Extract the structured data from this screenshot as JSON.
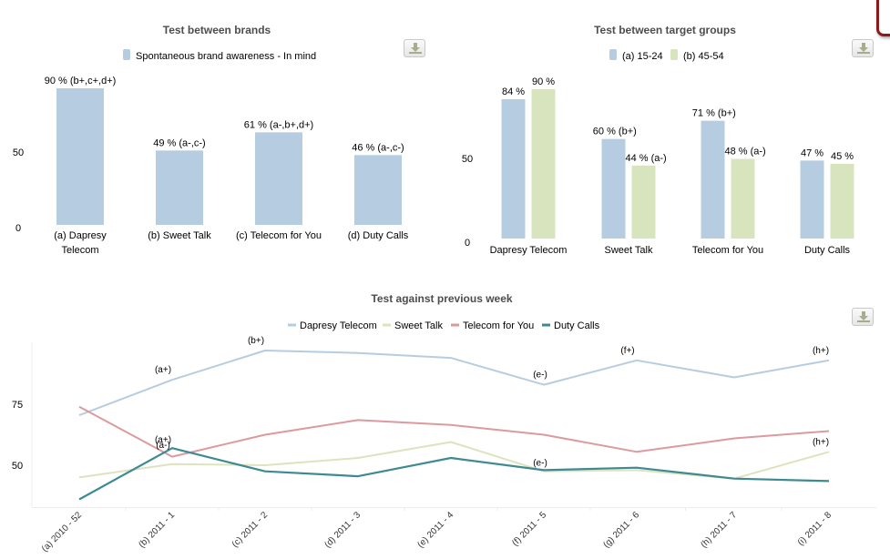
{
  "colors": {
    "bar_blue": "#b6cde1",
    "bar_green": "#d7e4bd",
    "line_dapresy": "#b6cde1",
    "line_sweet": "#dde3be",
    "line_telecom": "#dc9a9e",
    "line_duty": "#3e8a93",
    "title": "#4d4d4d",
    "axis": "#ececec"
  },
  "buttons": {
    "download_label": "Download"
  },
  "chart_data": [
    {
      "id": "brands",
      "type": "bar",
      "title": "Test between brands",
      "legend": [
        "Spontaneous brand awareness - In mind"
      ],
      "legend_position": "top-center",
      "categories": [
        "(a) Dapresy Telecom",
        "(b) Sweet Talk",
        "(c) Telecom for You",
        "(d) Duty Calls"
      ],
      "category_lines": [
        [
          "(a) Dapresy",
          "Telecom"
        ],
        [
          "(b) Sweet Talk"
        ],
        [
          "(c) Telecom for You"
        ],
        [
          "(d) Duty Calls"
        ]
      ],
      "series": [
        {
          "name": "Spontaneous brand awareness - In mind",
          "values": [
            90,
            49,
            61,
            46
          ],
          "labels": [
            "90 % (b+,c+,d+)",
            "49 % (a-,c-)",
            "61 % (a-,b+,d+)",
            "46 % (a-,c-)"
          ]
        }
      ],
      "yticks": [
        0,
        50
      ],
      "ylim": [
        0,
        100
      ],
      "grid": false
    },
    {
      "id": "groups",
      "type": "bar",
      "title": "Test between target groups",
      "legend": [
        "(a) 15-24",
        "(b) 45-54"
      ],
      "legend_position": "top-center",
      "categories": [
        "Dapresy Telecom",
        "Sweet Talk",
        "Telecom for You",
        "Duty Calls"
      ],
      "series": [
        {
          "name": "(a) 15-24",
          "values": [
            84,
            60,
            71,
            47
          ],
          "labels": [
            "84 %",
            "60 % (b+)",
            "71 % (b+)",
            "47 %"
          ]
        },
        {
          "name": "(b) 45-54",
          "values": [
            90,
            44,
            48,
            45
          ],
          "labels": [
            "90 %",
            "44 % (a-)",
            "48 % (a-)",
            "45 %"
          ]
        }
      ],
      "yticks": [
        0,
        50
      ],
      "ylim": [
        0,
        100
      ],
      "grid": false
    },
    {
      "id": "weekly",
      "type": "line",
      "title": "Test against previous week",
      "legend": [
        "Dapresy Telecom",
        "Sweet Talk",
        "Telecom for You",
        "Duty Calls"
      ],
      "legend_position": "top-center",
      "x": [
        "(a) 2010 - 52",
        "(b) 2011 - 1",
        "(c) 2011 - 2",
        "(d) 2011 - 3",
        "(e) 2011 - 4",
        "(f) 2011 - 5",
        "(g) 2011 - 6",
        "(h) 2011 - 7",
        "(i) 2011 - 8"
      ],
      "series": [
        {
          "name": "Dapresy Telecom",
          "values": [
            70.5,
            85,
            97,
            96,
            94,
            83,
            93,
            86,
            93
          ],
          "annotations": [
            null,
            "(a+)",
            "(b+)",
            null,
            null,
            "(e-)",
            "(f+)",
            null,
            "(h+)"
          ]
        },
        {
          "name": "Sweet Talk",
          "values": [
            45,
            50.5,
            50,
            53,
            59.5,
            47.5,
            48,
            44.5,
            55.5
          ],
          "annotations": [
            null,
            "(a+)",
            null,
            null,
            null,
            null,
            null,
            null,
            "(h+)"
          ]
        },
        {
          "name": "Telecom for You",
          "values": [
            74,
            53.5,
            62.5,
            68.5,
            66.5,
            62.5,
            55.5,
            61,
            64
          ],
          "annotations": [
            null,
            null,
            null,
            null,
            null,
            null,
            null,
            null,
            null
          ]
        },
        {
          "name": "Duty Calls",
          "values": [
            36,
            57,
            47.5,
            45.5,
            53,
            48,
            49,
            44.5,
            43.5
          ],
          "annotations": [
            null,
            "(a-)",
            null,
            null,
            null,
            "(e-)",
            null,
            null,
            null
          ]
        }
      ],
      "yticks": [
        50,
        75
      ],
      "ylim": [
        31,
        103
      ],
      "grid": false
    }
  ]
}
